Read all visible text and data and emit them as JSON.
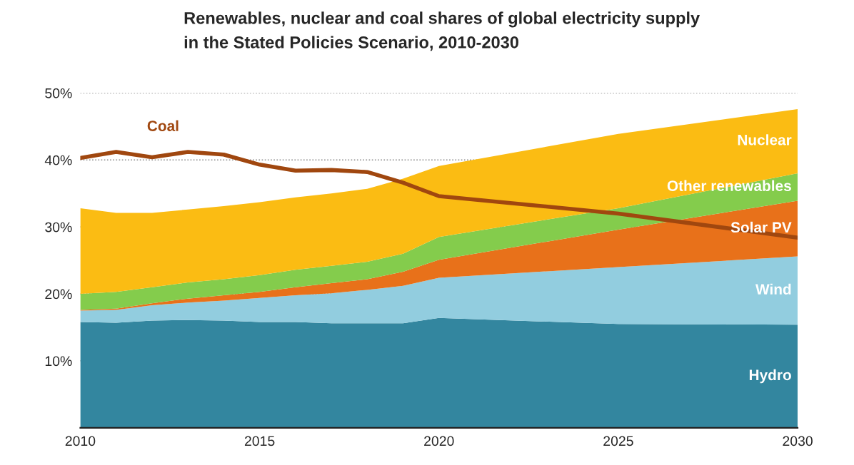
{
  "chart_data": {
    "type": "area",
    "stacked": true,
    "title": "Renewables, nuclear and coal shares of global electricity supply\nin the Stated Policies Scenario, 2010-2030",
    "x": [
      2010,
      2011,
      2012,
      2013,
      2014,
      2015,
      2016,
      2017,
      2018,
      2019,
      2020,
      2025,
      2030
    ],
    "series": [
      {
        "name": "Hydro",
        "color": "#33869f",
        "values": [
          15.8,
          15.7,
          16.0,
          16.1,
          16.0,
          15.8,
          15.8,
          15.6,
          15.6,
          15.6,
          16.4,
          15.5,
          15.4
        ]
      },
      {
        "name": "Wind",
        "color": "#92cddf",
        "values": [
          1.7,
          1.9,
          2.3,
          2.6,
          3.0,
          3.6,
          4.0,
          4.5,
          5.0,
          5.6,
          6.0,
          8.5,
          10.2
        ]
      },
      {
        "name": "Solar PV",
        "color": "#e8711a",
        "values": [
          0.1,
          0.2,
          0.3,
          0.6,
          0.8,
          0.9,
          1.2,
          1.5,
          1.6,
          2.1,
          2.7,
          5.6,
          8.3
        ]
      },
      {
        "name": "Other renewables",
        "color": "#84cc4c",
        "values": [
          2.4,
          2.5,
          2.4,
          2.4,
          2.4,
          2.5,
          2.6,
          2.6,
          2.6,
          2.7,
          3.4,
          3.2,
          4.1
        ]
      },
      {
        "name": "Nuclear",
        "color": "#fbbc13",
        "values": [
          12.8,
          11.8,
          11.1,
          10.9,
          10.9,
          10.9,
          10.8,
          10.8,
          10.9,
          11.2,
          10.6,
          11.1,
          9.6
        ]
      },
      {
        "name": "Coal",
        "type": "line",
        "color": "#a0470f",
        "values": [
          40.3,
          41.2,
          40.4,
          41.2,
          40.8,
          39.3,
          38.4,
          38.5,
          38.2,
          36.6,
          34.6,
          32.0,
          28.4
        ]
      }
    ],
    "xlim": [
      2010,
      2030
    ],
    "xticks": [
      2010,
      2015,
      2020,
      2025,
      2030
    ],
    "ylim": [
      0,
      50
    ],
    "yticks": [
      {
        "value": 10,
        "label": "10%"
      },
      {
        "value": 20,
        "label": "20%"
      },
      {
        "value": 30,
        "label": "30%"
      },
      {
        "value": 40,
        "label": "40%"
      },
      {
        "value": 50,
        "label": "50%"
      }
    ],
    "grid": "y",
    "legend": false
  }
}
